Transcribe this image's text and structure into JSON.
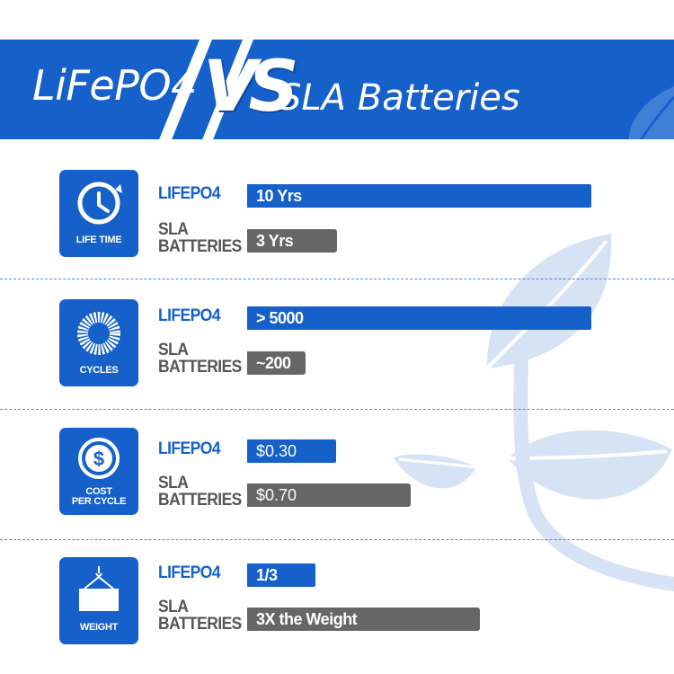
{
  "header": {
    "left_text": "LiFePO4",
    "vs_text": "VS",
    "right_text": "SLA Batteries"
  },
  "colors": {
    "brand_blue": "#1560c9",
    "sla_gray": "#666666",
    "leaf": "#d6e3f5"
  },
  "rows": [
    {
      "icon": "clock-icon",
      "icon_label_lines": [
        "LIFE TIME"
      ],
      "lifepo4_label": "LIFEPO4",
      "lifepo4_value": "10 Yrs",
      "sla_label": "SLA\nBATTERIES",
      "sla_value": "3 Yrs"
    },
    {
      "icon": "cycle-ring-icon",
      "icon_label_lines": [
        "CYCLES"
      ],
      "lifepo4_label": "LIFEPO4",
      "lifepo4_value": "> 5000",
      "sla_label": "SLA\nBATTERIES",
      "sla_value": "~200"
    },
    {
      "icon": "dollar-coin-icon",
      "icon_label_lines": [
        "COST",
        "PER CYCLE"
      ],
      "lifepo4_label": "LIFEPO4",
      "lifepo4_value": "$0.30",
      "sla_label": "SLA\nBATTERIES",
      "sla_value": "$0.70"
    },
    {
      "icon": "hanging-weight-icon",
      "icon_label_lines": [
        "WEIGHT"
      ],
      "lifepo4_label": "LIFEPO4",
      "lifepo4_value": "1/3",
      "sla_label": "SLA\nBATTERIES",
      "sla_value": "3X the Weight"
    }
  ]
}
